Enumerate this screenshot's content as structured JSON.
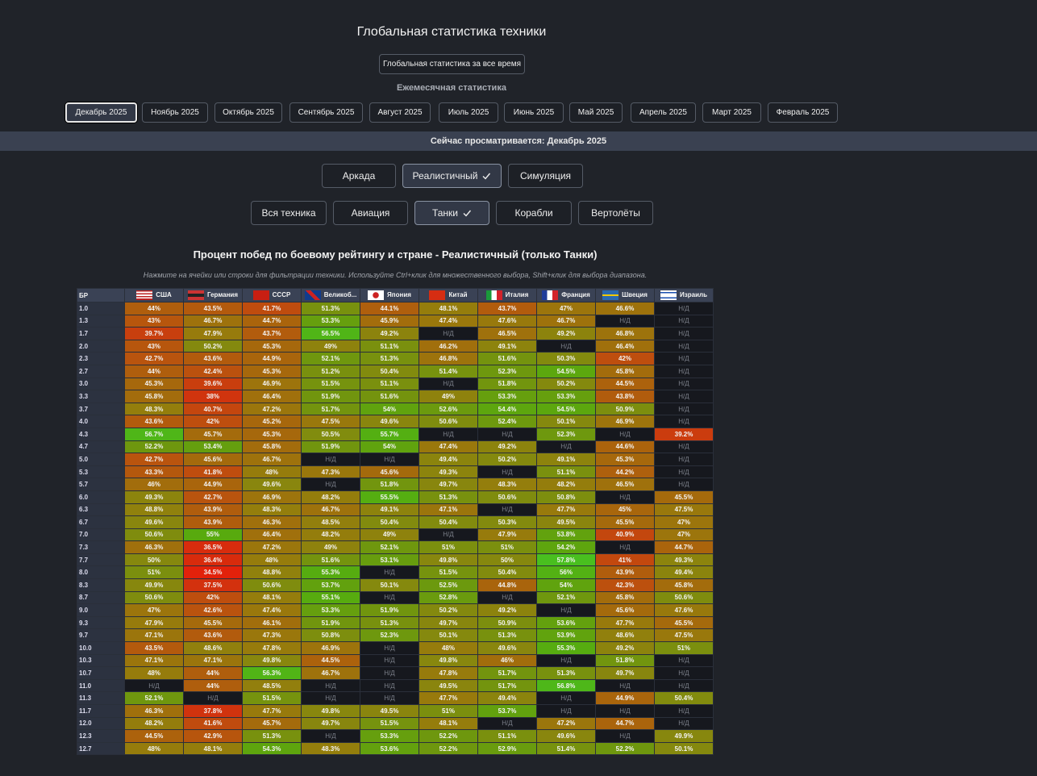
{
  "header": {
    "title": "Глобальная статистика техники",
    "all_time_button": "Глобальная статистика за все время",
    "monthly_label": "Ежемесячная статистика",
    "months": [
      "Декабрь 2025",
      "Ноябрь 2025",
      "Октябрь 2025",
      "Сентябрь 2025",
      "Август 2025",
      "Июль 2025",
      "Июнь 2025",
      "Май 2025",
      "Апрель 2025",
      "Март 2025",
      "Февраль 2025"
    ],
    "banner": "Сейчас просматривается: Декабрь 2025",
    "modes": [
      "Аркада",
      "Реалистичный",
      "Симуляция"
    ],
    "types": [
      "Вся техника",
      "Авиация",
      "Танки",
      "Корабли",
      "Вертолёты"
    ]
  },
  "table": {
    "title": "Процент побед по боевому рейтингу и стране - Реалистичный (только Танки)",
    "hint": "Нажмите на ячейки или строки для фильтрации техники. Используйте Ctrl+клик для множественного выбора, Shift+клик для выбора диапазона.",
    "columns": [
      "БР",
      "США",
      "Германия",
      "СССР",
      "Великоб...",
      "Япония",
      "Китай",
      "Италия",
      "Франция",
      "Швеция",
      "Израиль"
    ],
    "rows": [
      [
        "1.0",
        "44%",
        "43.5%",
        "41.7%",
        "51.3%",
        "44.1%",
        "48.1%",
        "43.7%",
        "47%",
        "46.6%",
        "Н/Д"
      ],
      [
        "1.3",
        "43%",
        "46.7%",
        "44.7%",
        "53.3%",
        "45.9%",
        "47.4%",
        "47.6%",
        "46.7%",
        "Н/Д",
        "Н/Д"
      ],
      [
        "1.7",
        "39.7%",
        "47.9%",
        "43.7%",
        "56.5%",
        "49.2%",
        "Н/Д",
        "46.5%",
        "49.2%",
        "46.8%",
        "Н/Д"
      ],
      [
        "2.0",
        "43%",
        "50.2%",
        "45.3%",
        "49%",
        "51.1%",
        "46.2%",
        "49.1%",
        "Н/Д",
        "46.4%",
        "Н/Д"
      ],
      [
        "2.3",
        "42.7%",
        "43.6%",
        "44.9%",
        "52.1%",
        "51.3%",
        "46.8%",
        "51.6%",
        "50.3%",
        "42%",
        "Н/Д"
      ],
      [
        "2.7",
        "44%",
        "42.4%",
        "45.3%",
        "51.2%",
        "50.4%",
        "51.4%",
        "52.3%",
        "54.5%",
        "45.8%",
        "Н/Д"
      ],
      [
        "3.0",
        "45.3%",
        "39.6%",
        "46.9%",
        "51.5%",
        "51.1%",
        "Н/Д",
        "51.8%",
        "50.2%",
        "44.5%",
        "Н/Д"
      ],
      [
        "3.3",
        "45.8%",
        "38%",
        "46.4%",
        "51.9%",
        "51.6%",
        "49%",
        "53.3%",
        "53.3%",
        "43.8%",
        "Н/Д"
      ],
      [
        "3.7",
        "48.3%",
        "40.7%",
        "47.2%",
        "51.7%",
        "54%",
        "52.6%",
        "54.4%",
        "54.5%",
        "50.9%",
        "Н/Д"
      ],
      [
        "4.0",
        "43.6%",
        "42%",
        "45.2%",
        "47.5%",
        "49.6%",
        "50.6%",
        "52.4%",
        "50.1%",
        "46.9%",
        "Н/Д"
      ],
      [
        "4.3",
        "56.7%",
        "45.7%",
        "45.3%",
        "50.5%",
        "55.7%",
        "Н/Д",
        "Н/Д",
        "52.3%",
        "Н/Д",
        "39.2%"
      ],
      [
        "4.7",
        "52.2%",
        "53.4%",
        "45.8%",
        "51.9%",
        "54%",
        "47.4%",
        "49.2%",
        "Н/Д",
        "44.6%",
        "Н/Д"
      ],
      [
        "5.0",
        "42.7%",
        "45.6%",
        "46.7%",
        "Н/Д",
        "Н/Д",
        "49.4%",
        "50.2%",
        "49.1%",
        "45.3%",
        "Н/Д"
      ],
      [
        "5.3",
        "43.3%",
        "41.8%",
        "48%",
        "47.3%",
        "45.6%",
        "49.3%",
        "Н/Д",
        "51.1%",
        "44.2%",
        "Н/Д"
      ],
      [
        "5.7",
        "46%",
        "44.9%",
        "49.6%",
        "Н/Д",
        "51.8%",
        "49.7%",
        "48.3%",
        "48.2%",
        "46.5%",
        "Н/Д"
      ],
      [
        "6.0",
        "49.3%",
        "42.7%",
        "46.9%",
        "48.2%",
        "55.5%",
        "51.3%",
        "50.6%",
        "50.8%",
        "Н/Д",
        "45.5%"
      ],
      [
        "6.3",
        "48.8%",
        "43.9%",
        "48.3%",
        "46.7%",
        "49.1%",
        "47.1%",
        "Н/Д",
        "47.7%",
        "45%",
        "47.5%"
      ],
      [
        "6.7",
        "49.6%",
        "43.9%",
        "46.3%",
        "48.5%",
        "50.4%",
        "50.4%",
        "50.3%",
        "49.5%",
        "45.5%",
        "47%"
      ],
      [
        "7.0",
        "50.6%",
        "55%",
        "46.4%",
        "48.2%",
        "49%",
        "Н/Д",
        "47.9%",
        "53.8%",
        "40.9%",
        "47%"
      ],
      [
        "7.3",
        "46.3%",
        "36.5%",
        "47.2%",
        "49%",
        "52.1%",
        "51%",
        "51%",
        "54.2%",
        "Н/Д",
        "44.7%"
      ],
      [
        "7.7",
        "50%",
        "36.4%",
        "48%",
        "51.6%",
        "53.1%",
        "49.8%",
        "50%",
        "57.8%",
        "41%",
        "49.3%"
      ],
      [
        "8.0",
        "51%",
        "34.5%",
        "48.8%",
        "55.3%",
        "Н/Д",
        "51.5%",
        "50.4%",
        "56%",
        "43.9%",
        "49.4%"
      ],
      [
        "8.3",
        "49.9%",
        "37.5%",
        "50.6%",
        "53.7%",
        "50.1%",
        "52.5%",
        "44.8%",
        "54%",
        "42.3%",
        "45.8%"
      ],
      [
        "8.7",
        "50.6%",
        "42%",
        "48.1%",
        "55.1%",
        "Н/Д",
        "52.8%",
        "Н/Д",
        "52.1%",
        "45.8%",
        "50.6%"
      ],
      [
        "9.0",
        "47%",
        "42.6%",
        "47.4%",
        "53.3%",
        "51.9%",
        "50.2%",
        "49.2%",
        "Н/Д",
        "45.6%",
        "47.6%"
      ],
      [
        "9.3",
        "47.9%",
        "45.5%",
        "46.1%",
        "51.9%",
        "51.3%",
        "49.7%",
        "50.9%",
        "53.6%",
        "47.7%",
        "45.5%"
      ],
      [
        "9.7",
        "47.1%",
        "43.6%",
        "47.3%",
        "50.8%",
        "52.3%",
        "50.1%",
        "51.3%",
        "53.9%",
        "48.6%",
        "47.5%"
      ],
      [
        "10.0",
        "43.5%",
        "48.6%",
        "47.8%",
        "46.9%",
        "Н/Д",
        "48%",
        "49.6%",
        "55.3%",
        "49.2%",
        "51%"
      ],
      [
        "10.3",
        "47.1%",
        "47.1%",
        "49.8%",
        "44.5%",
        "Н/Д",
        "49.8%",
        "46%",
        "Н/Д",
        "51.8%",
        "Н/Д"
      ],
      [
        "10.7",
        "48%",
        "44%",
        "56.3%",
        "46.7%",
        "Н/Д",
        "47.8%",
        "51.7%",
        "51.3%",
        "49.7%",
        "Н/Д"
      ],
      [
        "11.0",
        "Н/Д",
        "44%",
        "48.5%",
        "Н/Д",
        "Н/Д",
        "49.5%",
        "51.7%",
        "56.8%",
        "Н/Д",
        "Н/Д"
      ],
      [
        "11.3",
        "52.1%",
        "Н/Д",
        "51.5%",
        "Н/Д",
        "Н/Д",
        "47.7%",
        "49.4%",
        "Н/Д",
        "44.9%",
        "50.4%"
      ],
      [
        "11.7",
        "46.3%",
        "37.8%",
        "47.7%",
        "49.8%",
        "49.5%",
        "51%",
        "53.7%",
        "Н/Д",
        "Н/Д",
        "Н/Д"
      ],
      [
        "12.0",
        "48.2%",
        "41.6%",
        "45.7%",
        "49.7%",
        "51.5%",
        "48.1%",
        "Н/Д",
        "47.2%",
        "44.7%",
        "Н/Д"
      ],
      [
        "12.3",
        "44.5%",
        "42.9%",
        "51.3%",
        "Н/Д",
        "53.3%",
        "52.2%",
        "51.1%",
        "49.6%",
        "Н/Д",
        "49.9%"
      ],
      [
        "12.7",
        "48%",
        "48.1%",
        "54.3%",
        "48.3%",
        "53.6%",
        "52.2%",
        "52.9%",
        "51.4%",
        "52.2%",
        "50.1%"
      ]
    ]
  }
}
